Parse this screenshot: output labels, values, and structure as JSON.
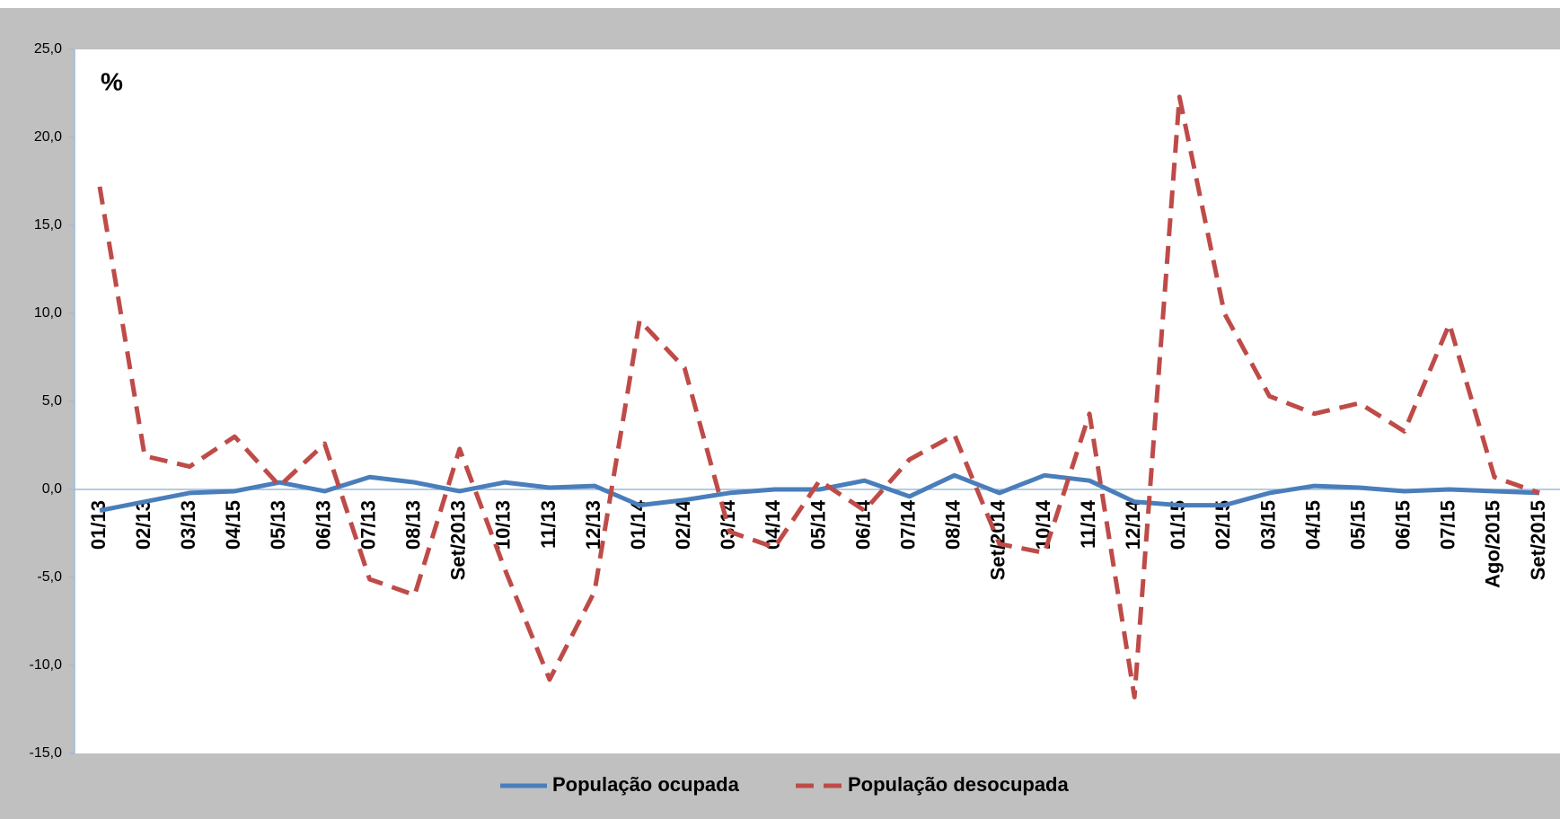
{
  "chart_data": {
    "type": "line",
    "annotation": "%",
    "categories": [
      "01/13",
      "02/13",
      "03/13",
      "04/15",
      "05/13",
      "06/13",
      "07/13",
      "08/13",
      "Set/2013",
      "10/13",
      "11/13",
      "12/13",
      "01/14",
      "02/14",
      "03/14",
      "04/14",
      "05/14",
      "06/14",
      "07/14",
      "08/14",
      "Set/2014",
      "10/14",
      "11/14",
      "12/14",
      "01/15",
      "02/15",
      "03/15",
      "04/15",
      "05/15",
      "06/15",
      "07/15",
      "Ago/2015",
      "Set/2015"
    ],
    "series": [
      {
        "name": "População ocupada",
        "color": "#4a7ebb",
        "line_style": "solid",
        "values": [
          -1.2,
          -0.7,
          -0.2,
          -0.1,
          0.4,
          -0.1,
          0.7,
          0.4,
          -0.1,
          0.4,
          0.1,
          0.2,
          -0.9,
          -0.6,
          -0.2,
          0.0,
          0.0,
          0.5,
          -0.4,
          0.8,
          -0.2,
          0.8,
          0.5,
          -0.7,
          -0.9,
          -0.9,
          -0.2,
          0.2,
          0.1,
          -0.1,
          0.0,
          -0.1,
          -0.2
        ]
      },
      {
        "name": "População desocupada",
        "color": "#be4b48",
        "line_style": "dashed",
        "values": [
          17.2,
          1.9,
          1.3,
          3.0,
          0.2,
          2.6,
          -5.1,
          -6.0,
          2.3,
          -4.5,
          -10.8,
          -5.8,
          9.6,
          6.9,
          -2.4,
          -3.3,
          0.5,
          -1.2,
          1.7,
          3.1,
          -3.1,
          -3.6,
          4.3,
          -11.8,
          22.3,
          10.0,
          5.3,
          4.3,
          4.9,
          3.3,
          9.4,
          0.7,
          -0.2
        ]
      }
    ],
    "ylim": [
      -15,
      25
    ],
    "yticks": [
      {
        "value": -15,
        "label": "-15,0"
      },
      {
        "value": -10,
        "label": "-10,0"
      },
      {
        "value": -5,
        "label": "-5,0"
      },
      {
        "value": 0,
        "label": "0,0"
      },
      {
        "value": 5,
        "label": "5,0"
      },
      {
        "value": 10,
        "label": "10,0"
      },
      {
        "value": 15,
        "label": "15,0"
      },
      {
        "value": 20,
        "label": "20,0"
      },
      {
        "value": 25,
        "label": "25,0"
      }
    ],
    "grid": false,
    "legend": "bottom"
  }
}
